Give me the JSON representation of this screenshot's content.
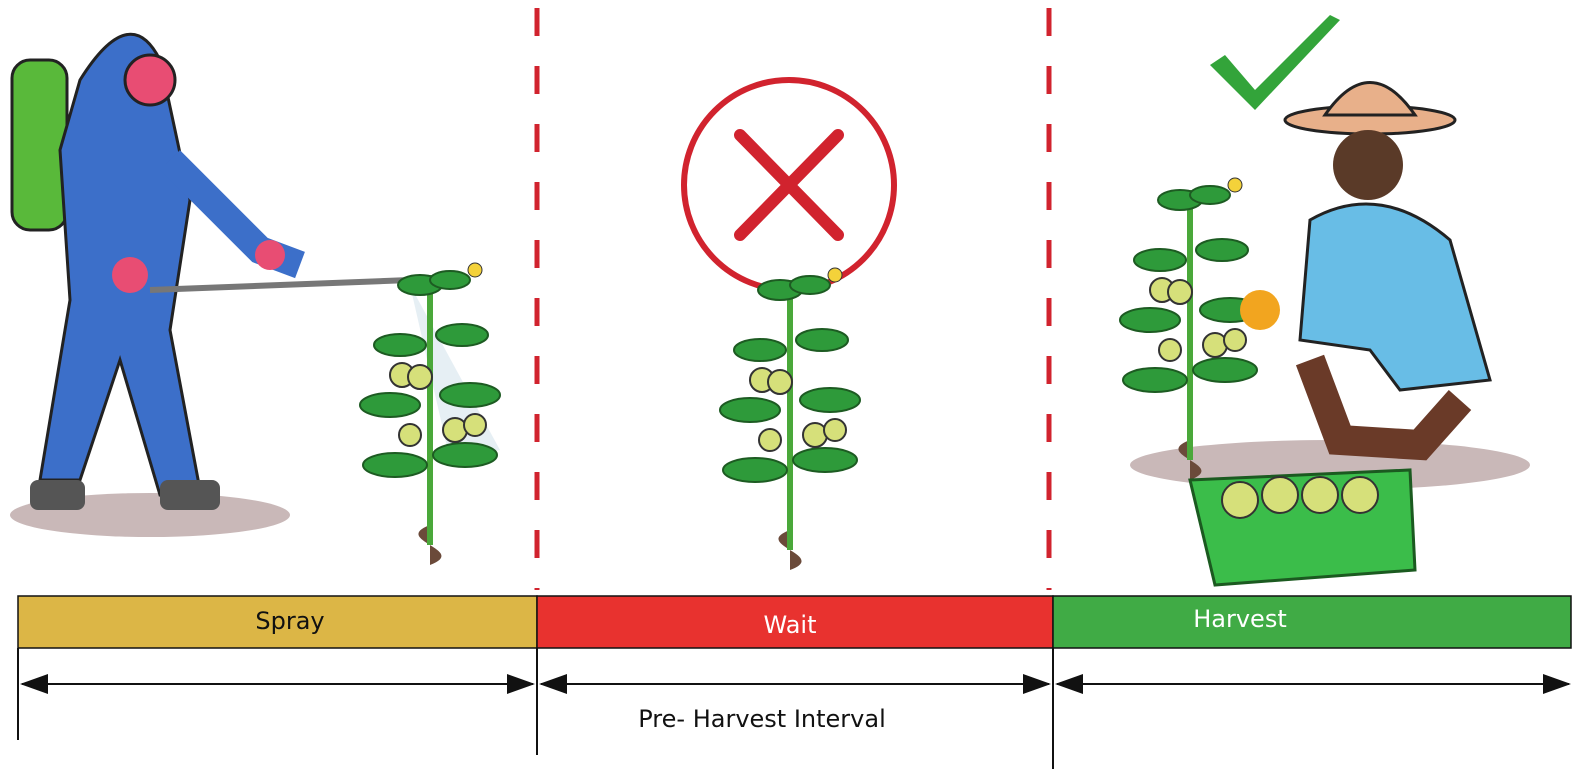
{
  "phases": [
    {
      "label": "Spray"
    },
    {
      "label": "Wait"
    },
    {
      "label": "Harvest"
    }
  ],
  "interval": {
    "label": "Pre- Harvest Interval"
  }
}
